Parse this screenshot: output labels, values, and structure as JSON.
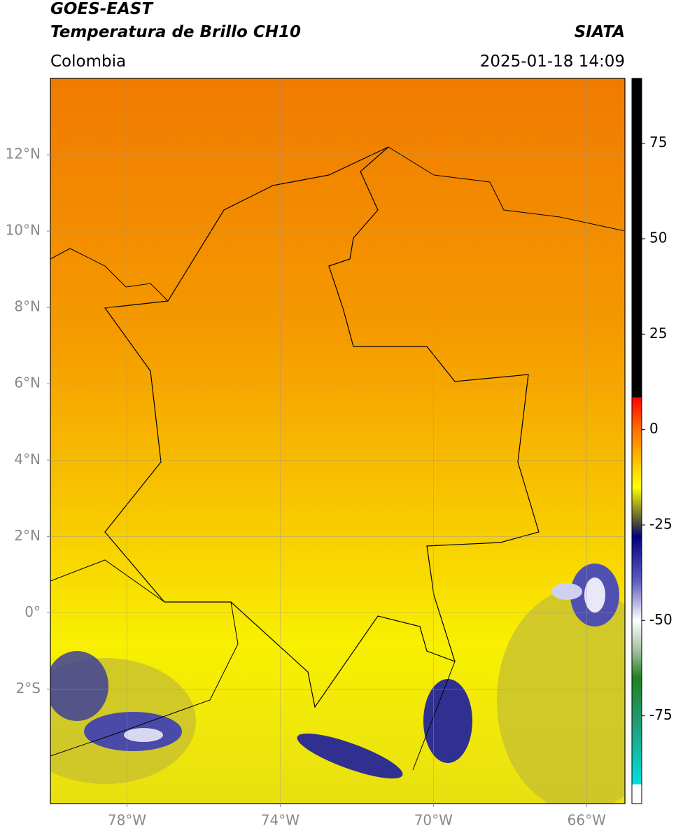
{
  "header": {
    "satellite": "GOES-EAST",
    "product": "Temperatura de Brillo CH10",
    "source": "SIATA",
    "region": "Colombia",
    "datetime": "2025-01-18 14:09"
  },
  "map": {
    "xlim": [
      -80,
      -65
    ],
    "ylim": [
      -5,
      14
    ],
    "xticks": [
      {
        "value": -78,
        "label": "78°W"
      },
      {
        "value": -74,
        "label": "74°W"
      },
      {
        "value": -70,
        "label": "70°W"
      },
      {
        "value": -66,
        "label": "66°W"
      }
    ],
    "yticks": [
      {
        "value": 12,
        "label": "12°N"
      },
      {
        "value": 10,
        "label": "10°N"
      },
      {
        "value": 8,
        "label": "8°N"
      },
      {
        "value": 6,
        "label": "6°N"
      },
      {
        "value": 4,
        "label": "4°N"
      },
      {
        "value": 2,
        "label": "2°N"
      },
      {
        "value": 0,
        "label": "0°"
      },
      {
        "value": -2,
        "label": "2°S"
      }
    ],
    "grid": true
  },
  "colorbar": {
    "lim": [
      -98,
      92
    ],
    "ticks": [
      75,
      50,
      25,
      0,
      -25,
      -50,
      -75
    ],
    "stops": [
      {
        "value": 92,
        "color": "#000000"
      },
      {
        "value": 8.5,
        "color": "#000000"
      },
      {
        "value": 8.5,
        "color": "#ff0000"
      },
      {
        "value": 0,
        "color": "#ff7000"
      },
      {
        "value": -10,
        "color": "#ffd000"
      },
      {
        "value": -15,
        "color": "#ffff00"
      },
      {
        "value": -20,
        "color": "#a0a020"
      },
      {
        "value": -25,
        "color": "#404040"
      },
      {
        "value": -28,
        "color": "#000080"
      },
      {
        "value": -40,
        "color": "#6060c0"
      },
      {
        "value": -50,
        "color": "#ffffff"
      },
      {
        "value": -58,
        "color": "#a0c0a0"
      },
      {
        "value": -65,
        "color": "#208020"
      },
      {
        "value": -78,
        "color": "#20a080"
      },
      {
        "value": -93,
        "color": "#00e0e0"
      },
      {
        "value": -93,
        "color": "#ffffff"
      },
      {
        "value": -98,
        "color": "#ffffff"
      }
    ]
  }
}
